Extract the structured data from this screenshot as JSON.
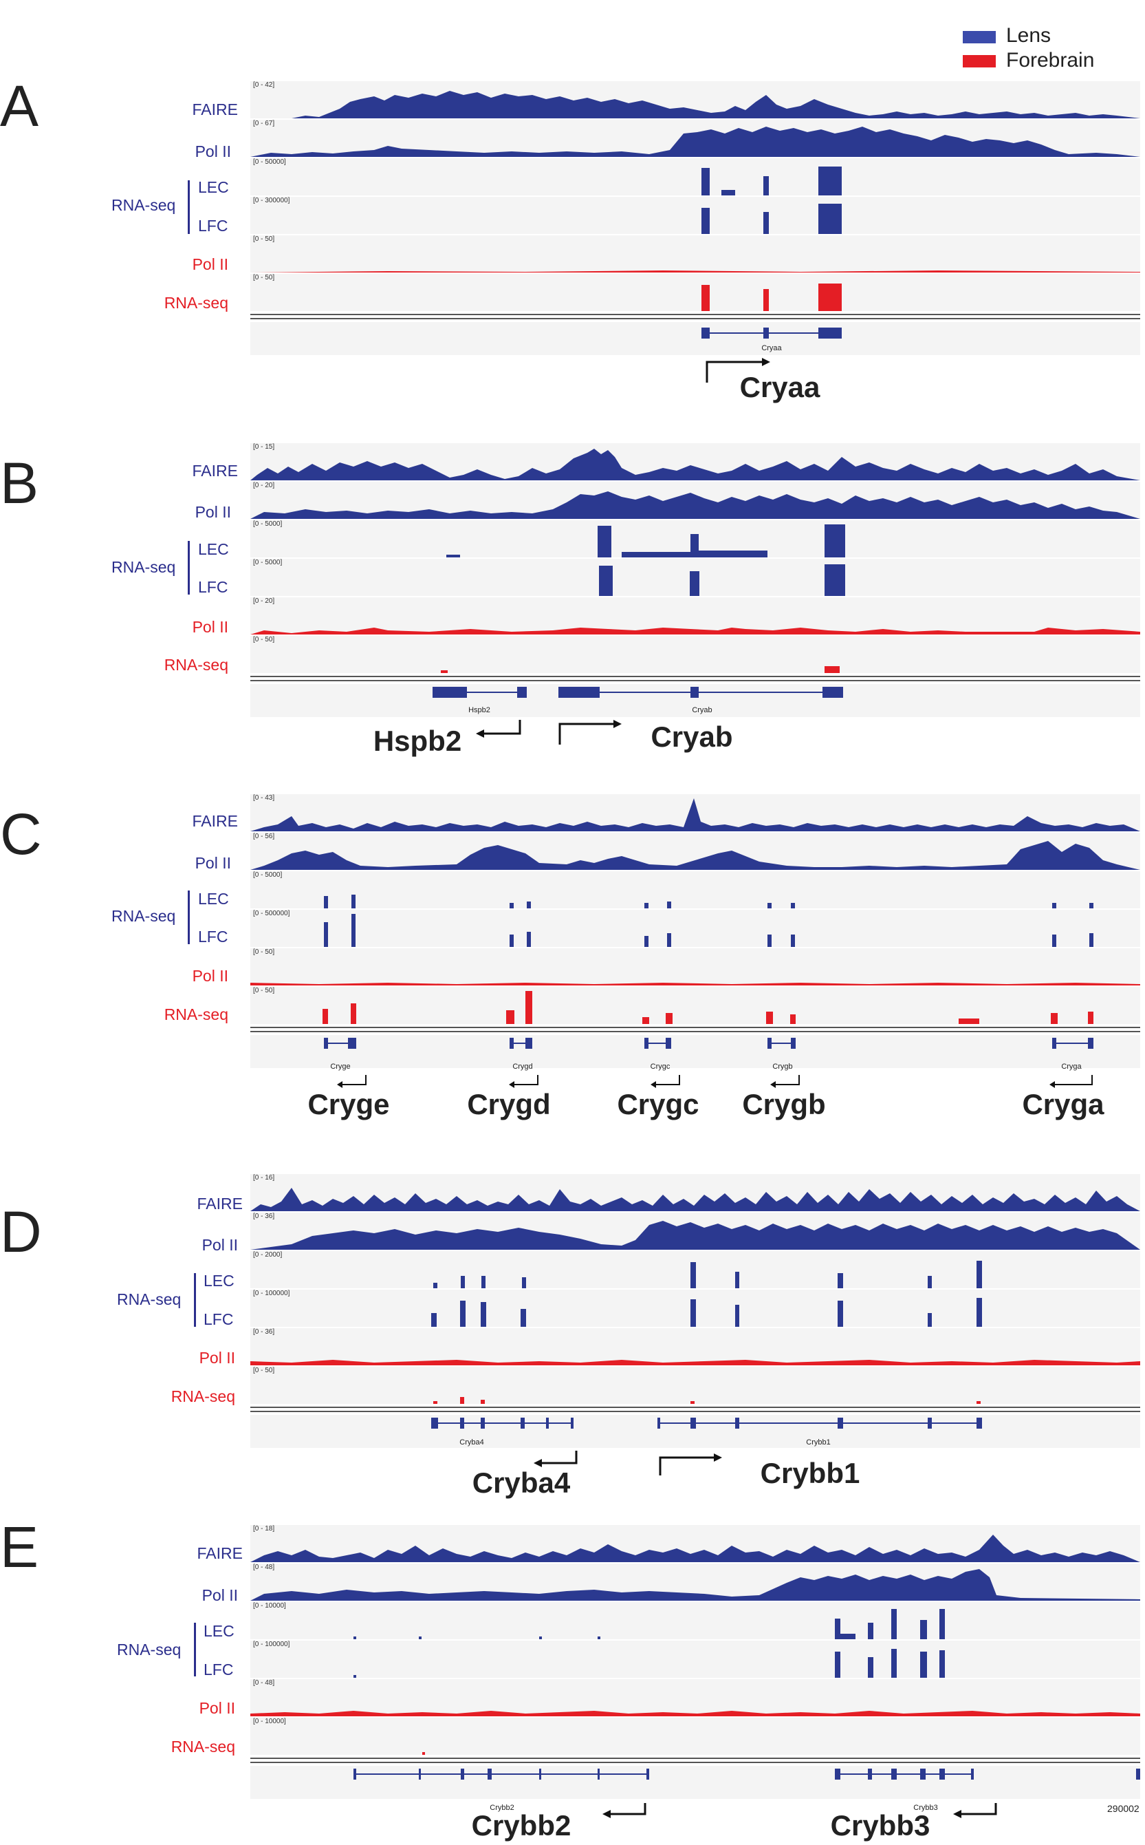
{
  "legend": {
    "items": [
      {
        "label": "Lens",
        "color": "#3b4bab"
      },
      {
        "label": "Forebrain",
        "color": "#e41e25"
      }
    ]
  },
  "colors": {
    "lens": "#2b3990",
    "forebrain": "#e41e25",
    "gene": "#2b3990"
  },
  "panels": [
    {
      "letter": "A",
      "tracks": [
        {
          "label": "FAIRE",
          "range": "[0 - 42]"
        },
        {
          "label": "Pol II",
          "range": "[0 - 67]"
        },
        {
          "label": "LEC",
          "range": "[0 - 50000]"
        },
        {
          "label": "LFC",
          "range": "[0 - 300000]"
        },
        {
          "label": "Pol II",
          "range": "[0 - 50]"
        },
        {
          "label": "RNA-seq",
          "range": "[0 - 50]"
        }
      ],
      "rnaseq_label": "RNA-seq",
      "genes": [
        {
          "small": "Cryaa",
          "big": "Cryaa"
        }
      ]
    },
    {
      "letter": "B",
      "tracks": [
        {
          "label": "FAIRE",
          "range": "[0 - 15]"
        },
        {
          "label": "Pol II",
          "range": "[0 - 20]"
        },
        {
          "label": "LEC",
          "range": "[0 - 5000]"
        },
        {
          "label": "LFC",
          "range": "[0 - 5000]"
        },
        {
          "label": "Pol II",
          "range": "[0 - 20]"
        },
        {
          "label": "RNA-seq",
          "range": "[0 - 50]"
        }
      ],
      "rnaseq_label": "RNA-seq",
      "genes": [
        {
          "small": "Hspb2",
          "big": "Hspb2"
        },
        {
          "small": "Cryab",
          "big": "Cryab"
        }
      ]
    },
    {
      "letter": "C",
      "tracks": [
        {
          "label": "FAIRE",
          "range": "[0 - 43]"
        },
        {
          "label": "Pol II",
          "range": "[0 - 56]"
        },
        {
          "label": "LEC",
          "range": "[0 - 5000]"
        },
        {
          "label": "LFC",
          "range": "[0 - 500000]"
        },
        {
          "label": "Pol II",
          "range": "[0 - 50]"
        },
        {
          "label": "RNA-seq",
          "range": "[0 - 50]"
        }
      ],
      "rnaseq_label": "RNA-seq",
      "genes": [
        {
          "small": "Cryge",
          "big": "Cryge"
        },
        {
          "small": "Crygd",
          "big": "Crygd"
        },
        {
          "small": "Crygc",
          "big": "Crygc"
        },
        {
          "small": "Crygb",
          "big": "Crygb"
        },
        {
          "small": "Cryga",
          "big": "Cryga"
        }
      ]
    },
    {
      "letter": "D",
      "tracks": [
        {
          "label": "FAIRE",
          "range": "[0 - 16]"
        },
        {
          "label": "Pol II",
          "range": "[0 - 36]"
        },
        {
          "label": "LEC",
          "range": "[0 - 2000]"
        },
        {
          "label": "LFC",
          "range": "[0 - 100000]"
        },
        {
          "label": "Pol II",
          "range": "[0 - 36]"
        },
        {
          "label": "RNA-seq",
          "range": "[0 - 50]"
        }
      ],
      "rnaseq_label": "RNA-seq",
      "genes": [
        {
          "small": "Cryba4",
          "big": "Cryba4"
        },
        {
          "small": "Crybb1",
          "big": "Crybb1"
        }
      ]
    },
    {
      "letter": "E",
      "tracks": [
        {
          "label": "FAIRE",
          "range": "[0 - 18]"
        },
        {
          "label": "Pol II",
          "range": "[0 - 48]"
        },
        {
          "label": "LEC",
          "range": "[0 - 10000]"
        },
        {
          "label": "LFC",
          "range": "[0 - 100000]"
        },
        {
          "label": "Pol II",
          "range": "[0 - 48]"
        },
        {
          "label": "RNA-seq",
          "range": "[0 - 10000]"
        }
      ],
      "rnaseq_label": "RNA-seq",
      "genes": [
        {
          "small": "Crybb2",
          "big": "Crybb2"
        },
        {
          "small": "Crybb3",
          "big": "Crybb3"
        }
      ],
      "coordinate": "290002"
    }
  ]
}
